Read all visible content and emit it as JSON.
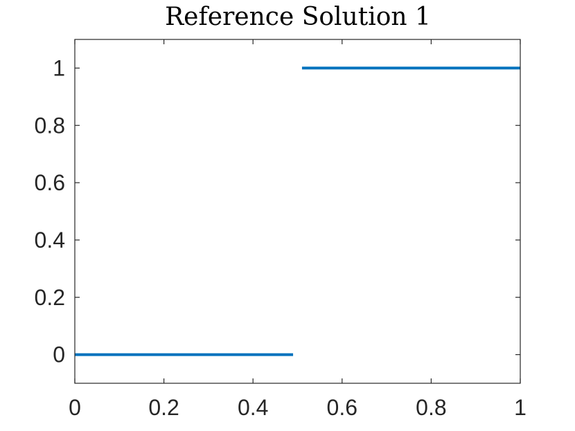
{
  "chart_data": {
    "type": "line",
    "title": "Reference Solution 1",
    "xlabel": "",
    "ylabel": "",
    "xlim": [
      0,
      1
    ],
    "ylim": [
      -0.1,
      1.1
    ],
    "xticks": [
      0,
      0.2,
      0.4,
      0.6,
      0.8,
      1
    ],
    "xtick_labels": [
      "0",
      "0.2",
      "0.4",
      "0.6",
      "0.8",
      "1"
    ],
    "yticks": [
      0,
      0.2,
      0.4,
      0.6,
      0.8,
      1
    ],
    "ytick_labels": [
      "0",
      "0.2",
      "0.4",
      "0.6",
      "0.8",
      "1"
    ],
    "grid": false,
    "series": [
      {
        "color": "#0072BD",
        "segments": [
          {
            "x": [
              0,
              0.49
            ],
            "y": [
              0,
              0
            ]
          },
          {
            "x": [
              0.51,
              1
            ],
            "y": [
              1,
              1
            ]
          }
        ]
      }
    ]
  }
}
